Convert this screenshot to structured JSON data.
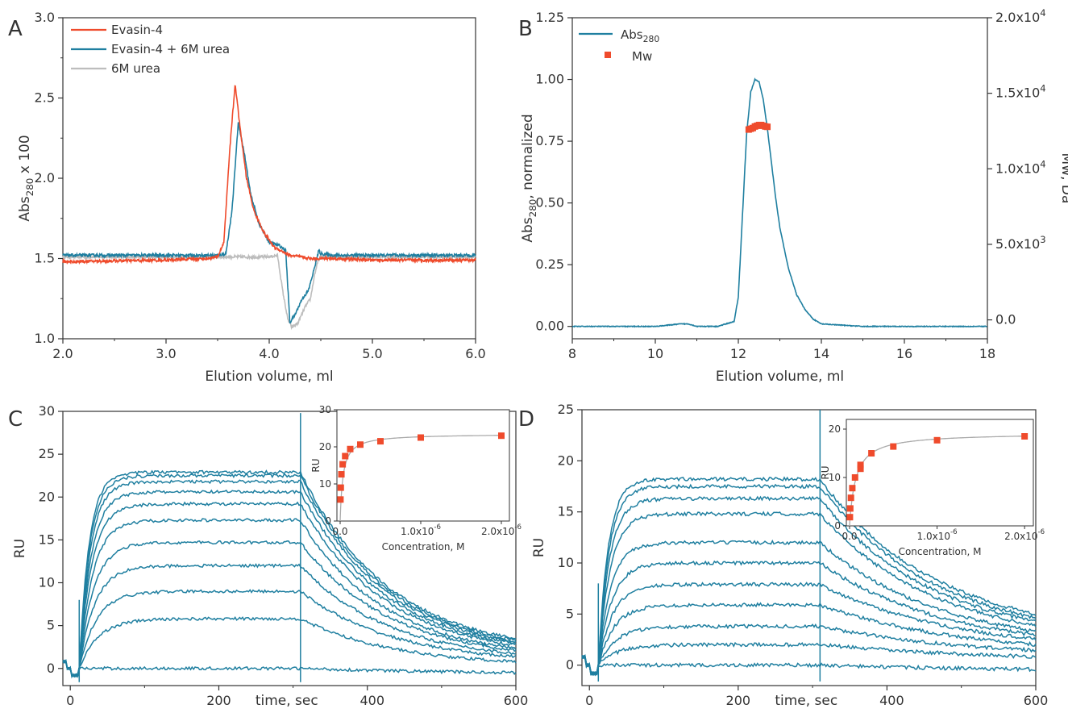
{
  "colors": {
    "red": "#ef4b2c",
    "teal": "#1f7fa0",
    "gray": "#bdbdbd",
    "fit": "#aaaaaa",
    "axis": "#333333"
  },
  "chart_data": [
    {
      "panel": "A",
      "type": "line",
      "xlabel": "Elution volume, ml",
      "ylabel_main": "Abs",
      "ylabel_sub": "280",
      "ylabel_rest": " x 100",
      "xlim": [
        2.0,
        6.0
      ],
      "ylim": [
        1.0,
        3.0
      ],
      "xticks": [
        2.0,
        3.0,
        4.0,
        5.0,
        6.0
      ],
      "xtick_labels": [
        "2.0",
        "3.0",
        "4.0",
        "5.0",
        "6.0"
      ],
      "yticks": [
        1.0,
        1.5,
        2.0,
        2.5,
        3.0
      ],
      "ytick_labels": [
        "1.0",
        "1.5",
        "2.0",
        "2.5",
        "3.0"
      ],
      "series": [
        {
          "name": "Evasin-4",
          "color": "#ef4b2c",
          "x": [
            2.0,
            3.0,
            3.4,
            3.5,
            3.56,
            3.62,
            3.67,
            3.72,
            3.78,
            3.85,
            3.95,
            4.05,
            4.2,
            4.4,
            4.6,
            5.0,
            6.0
          ],
          "y": [
            1.48,
            1.49,
            1.5,
            1.51,
            1.6,
            2.2,
            2.59,
            2.3,
            2.0,
            1.8,
            1.66,
            1.57,
            1.52,
            1.5,
            1.5,
            1.49,
            1.49
          ]
        },
        {
          "name": "Evasin-4 + 6M urea",
          "color": "#1f7fa0",
          "x": [
            2.0,
            3.0,
            3.5,
            3.58,
            3.64,
            3.7,
            3.76,
            3.82,
            3.9,
            4.0,
            4.1,
            4.16,
            4.2,
            4.25,
            4.32,
            4.38,
            4.43,
            4.48,
            4.5,
            4.6,
            5.0,
            6.0
          ],
          "y": [
            1.52,
            1.52,
            1.52,
            1.53,
            1.8,
            2.35,
            2.15,
            1.9,
            1.72,
            1.6,
            1.58,
            1.55,
            1.1,
            1.15,
            1.25,
            1.3,
            1.42,
            1.55,
            1.53,
            1.52,
            1.52,
            1.52
          ]
        },
        {
          "name": "6M urea",
          "color": "#bdbdbd",
          "x": [
            2.0,
            3.0,
            3.5,
            4.0,
            4.08,
            4.13,
            4.18,
            4.22,
            4.28,
            4.35,
            4.4,
            4.44,
            4.48,
            4.52,
            4.6,
            5.0,
            6.0
          ],
          "y": [
            1.51,
            1.51,
            1.51,
            1.51,
            1.52,
            1.3,
            1.12,
            1.07,
            1.1,
            1.2,
            1.25,
            1.4,
            1.5,
            1.51,
            1.51,
            1.51,
            1.51
          ]
        }
      ],
      "legend_position": "top-left"
    },
    {
      "panel": "B",
      "type": "line",
      "xlabel": "Elution volume, ml",
      "ylabel_main": "Abs",
      "ylabel_sub": "280",
      "ylabel_rest": ", normalized",
      "ylabel_right": "Mw, Da",
      "xlim": [
        8,
        18
      ],
      "ylim": [
        -0.05,
        1.25
      ],
      "ylim_right": [
        0,
        20000
      ],
      "xticks": [
        8,
        10,
        12,
        14,
        16,
        18
      ],
      "xtick_labels": [
        "8",
        "10",
        "12",
        "14",
        "16",
        "18"
      ],
      "yticks": [
        0.0,
        0.25,
        0.5,
        0.75,
        1.0,
        1.25
      ],
      "ytick_labels": [
        "0.00",
        "0.25",
        "0.50",
        "0.75",
        "1.00",
        "1.25"
      ],
      "yticks_right": [
        0,
        5000,
        10000,
        15000,
        20000
      ],
      "ytick_labels_right": [
        {
          "base": "0.0",
          "exp": ""
        },
        {
          "base": "5.0x10",
          "exp": "3"
        },
        {
          "base": "1.0x10",
          "exp": "4"
        },
        {
          "base": "1.5x10",
          "exp": "4"
        },
        {
          "base": "2.0x10",
          "exp": "4"
        }
      ],
      "series": [
        {
          "name": "Abs",
          "name_sub": "280",
          "color": "#1f7fa0",
          "x": [
            8,
            9,
            10,
            10.6,
            10.8,
            11,
            11.5,
            11.9,
            12.0,
            12.1,
            12.2,
            12.3,
            12.4,
            12.5,
            12.6,
            12.7,
            12.8,
            12.9,
            13.0,
            13.2,
            13.4,
            13.6,
            13.8,
            14.0,
            14.5,
            15,
            16,
            18
          ],
          "y": [
            0.0,
            0.0,
            0.0,
            0.01,
            0.01,
            0.0,
            0.0,
            0.02,
            0.12,
            0.45,
            0.78,
            0.95,
            1.0,
            0.99,
            0.92,
            0.8,
            0.66,
            0.52,
            0.4,
            0.24,
            0.13,
            0.07,
            0.03,
            0.01,
            0.005,
            0.0,
            0.0,
            0.0
          ]
        },
        {
          "name": "Mw",
          "color": "#ef4b2c",
          "axis": "right",
          "marker": "square",
          "x": [
            12.25,
            12.3,
            12.35,
            12.4,
            12.45,
            12.5,
            12.55,
            12.6,
            12.65,
            12.7
          ],
          "y": [
            12600,
            12650,
            12700,
            12800,
            12850,
            12900,
            12900,
            12850,
            12800,
            12780
          ]
        }
      ],
      "legend_position": "top-left"
    },
    {
      "panel": "C",
      "type": "line",
      "xlabel": "time, sec",
      "ylabel": "RU",
      "xlim": [
        -10,
        600
      ],
      "ylim": [
        -2,
        30
      ],
      "xticks": [
        0,
        200,
        400,
        600
      ],
      "xtick_labels": [
        "0",
        "200",
        "400",
        "600"
      ],
      "yticks": [
        0,
        5,
        10,
        15,
        20,
        25,
        30
      ],
      "ytick_labels": [
        "0",
        "5",
        "10",
        "15",
        "20",
        "25",
        "30"
      ],
      "injection_start": 12,
      "injection_end": 310,
      "spike_top": 29.8,
      "plateaus": [
        0,
        5.8,
        9.0,
        12.0,
        14.7,
        17.3,
        19.2,
        20.6,
        21.8,
        22.5,
        22.9
      ],
      "final_values": [
        -0.7,
        0.2,
        0.5,
        0.7,
        0.9,
        1.0,
        1.2,
        1.3,
        1.4,
        1.5,
        1.6
      ],
      "inset": {
        "type": "scatter",
        "xlabel": "Concentration, M",
        "ylabel": "RU",
        "xlim": [
          0,
          2.1e-06
        ],
        "ylim": [
          0,
          30
        ],
        "xticks": [
          0,
          1e-06,
          2e-06
        ],
        "xtick_labels": [
          {
            "base": "0.0",
            "exp": ""
          },
          {
            "base": "1.0x10",
            "exp": "-6"
          },
          {
            "base": "2.0x10",
            "exp": "-6"
          }
        ],
        "yticks": [
          0,
          10,
          20,
          30
        ],
        "ytick_labels": [
          "0",
          "10",
          "20",
          "30"
        ],
        "x": [
          3.9e-09,
          7.8e-09,
          1.56e-08,
          3.13e-08,
          6.25e-08,
          1.25e-07,
          2.5e-07,
          5e-07,
          1e-06,
          2e-06
        ],
        "y": [
          5.8,
          9.0,
          12.6,
          15.3,
          17.5,
          19.4,
          20.6,
          21.5,
          22.5,
          23.0
        ],
        "fit_rmax": 23.5,
        "fit_kd": 3.5e-08
      }
    },
    {
      "panel": "D",
      "type": "line",
      "xlabel": "time, sec",
      "ylabel": "RU",
      "xlim": [
        -10,
        600
      ],
      "ylim": [
        -2,
        25
      ],
      "xticks": [
        0,
        200,
        400,
        600
      ],
      "xtick_labels": [
        "0",
        "200",
        "400",
        "600"
      ],
      "yticks": [
        0,
        5,
        10,
        15,
        20,
        25
      ],
      "ytick_labels": [
        "0",
        "5",
        "10",
        "15",
        "20",
        "25"
      ],
      "injection_start": 12,
      "injection_end": 310,
      "spike_top": 25,
      "plateaus": [
        0,
        2.0,
        3.8,
        5.9,
        7.9,
        10.0,
        12.0,
        14.8,
        16.3,
        17.5,
        18.2
      ],
      "final_values": [
        -0.6,
        0.3,
        0.6,
        0.9,
        1.2,
        1.4,
        1.6,
        1.9,
        2.1,
        2.3,
        2.5
      ],
      "inset": {
        "type": "scatter",
        "xlabel": "Concentration, M",
        "ylabel": "RU",
        "xlim": [
          0,
          2.1e-06
        ],
        "ylim": [
          0,
          22
        ],
        "xticks": [
          0,
          1e-06,
          2e-06
        ],
        "xtick_labels": [
          {
            "base": "0.0",
            "exp": ""
          },
          {
            "base": "1.0x10",
            "exp": "-6"
          },
          {
            "base": "2.0x10",
            "exp": "-6"
          }
        ],
        "yticks": [
          0,
          10,
          20
        ],
        "ytick_labels": [
          "0",
          "10",
          "20"
        ],
        "x": [
          3.9e-09,
          7.8e-09,
          1.56e-08,
          3.13e-08,
          6.25e-08,
          1.25e-07,
          1.25e-07,
          2.5e-07,
          5e-07,
          1e-06,
          2e-06
        ],
        "y": [
          1.8,
          3.6,
          5.8,
          7.8,
          10.0,
          11.8,
          12.6,
          15.0,
          16.4,
          17.7,
          18.5
        ],
        "fit_rmax": 19.2,
        "fit_kd": 7e-08
      }
    }
  ]
}
